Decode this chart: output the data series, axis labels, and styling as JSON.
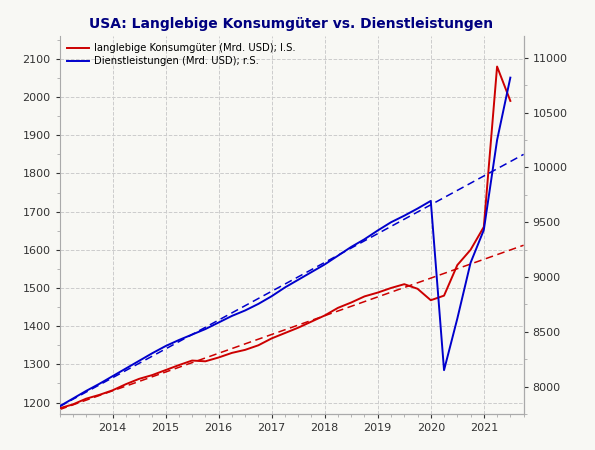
{
  "title": "USA: Langlebige Konsumgüter vs. Dienstleistungen",
  "legend1": "langlebige Konsumgüter (Mrd. USD); l.S.",
  "legend2": "Dienstleistungen (Mrd. USD); r.S.",
  "color_durable": "#cc0000",
  "color_services": "#0000cc",
  "ylim_left": [
    1170,
    2160
  ],
  "ylim_right": [
    7750,
    11200
  ],
  "yticks_left": [
    1200,
    1300,
    1400,
    1500,
    1600,
    1700,
    1800,
    1900,
    2000,
    2100
  ],
  "yticks_right": [
    8000,
    8500,
    9000,
    9500,
    10000,
    10500,
    11000
  ],
  "durable_x": [
    2013.0,
    2013.25,
    2013.5,
    2013.75,
    2014.0,
    2014.25,
    2014.5,
    2014.75,
    2015.0,
    2015.25,
    2015.5,
    2015.75,
    2016.0,
    2016.25,
    2016.5,
    2016.75,
    2017.0,
    2017.25,
    2017.5,
    2017.75,
    2018.0,
    2018.25,
    2018.5,
    2018.75,
    2019.0,
    2019.25,
    2019.5,
    2019.75,
    2020.0,
    2020.25,
    2020.5,
    2020.75,
    2021.0,
    2021.25,
    2021.5
  ],
  "durable_y": [
    1185,
    1195,
    1210,
    1220,
    1232,
    1248,
    1262,
    1272,
    1285,
    1298,
    1310,
    1308,
    1318,
    1330,
    1338,
    1350,
    1368,
    1382,
    1396,
    1412,
    1428,
    1448,
    1462,
    1478,
    1488,
    1500,
    1510,
    1498,
    1468,
    1480,
    1560,
    1600,
    1660,
    2080,
    1990
  ],
  "services_x": [
    2013.0,
    2013.25,
    2013.5,
    2013.75,
    2014.0,
    2014.25,
    2014.5,
    2014.75,
    2015.0,
    2015.25,
    2015.5,
    2015.75,
    2016.0,
    2016.25,
    2016.5,
    2016.75,
    2017.0,
    2017.25,
    2017.5,
    2017.75,
    2018.0,
    2018.25,
    2018.5,
    2018.75,
    2019.0,
    2019.25,
    2019.5,
    2019.75,
    2020.0,
    2020.25,
    2020.5,
    2020.75,
    2021.0,
    2021.25,
    2021.5
  ],
  "services_y": [
    7820,
    7890,
    7960,
    8025,
    8095,
    8165,
    8235,
    8305,
    8370,
    8425,
    8475,
    8525,
    8585,
    8645,
    8695,
    8755,
    8825,
    8905,
    8975,
    9045,
    9115,
    9195,
    9275,
    9345,
    9425,
    9500,
    9560,
    9625,
    9695,
    8150,
    8620,
    9130,
    9430,
    10250,
    10820
  ],
  "background_color": "#f8f8f4",
  "grid_color": "#cccccc",
  "xlim": [
    2013.0,
    2021.75
  ],
  "xticks": [
    2014,
    2015,
    2016,
    2017,
    2018,
    2019,
    2020,
    2021
  ]
}
